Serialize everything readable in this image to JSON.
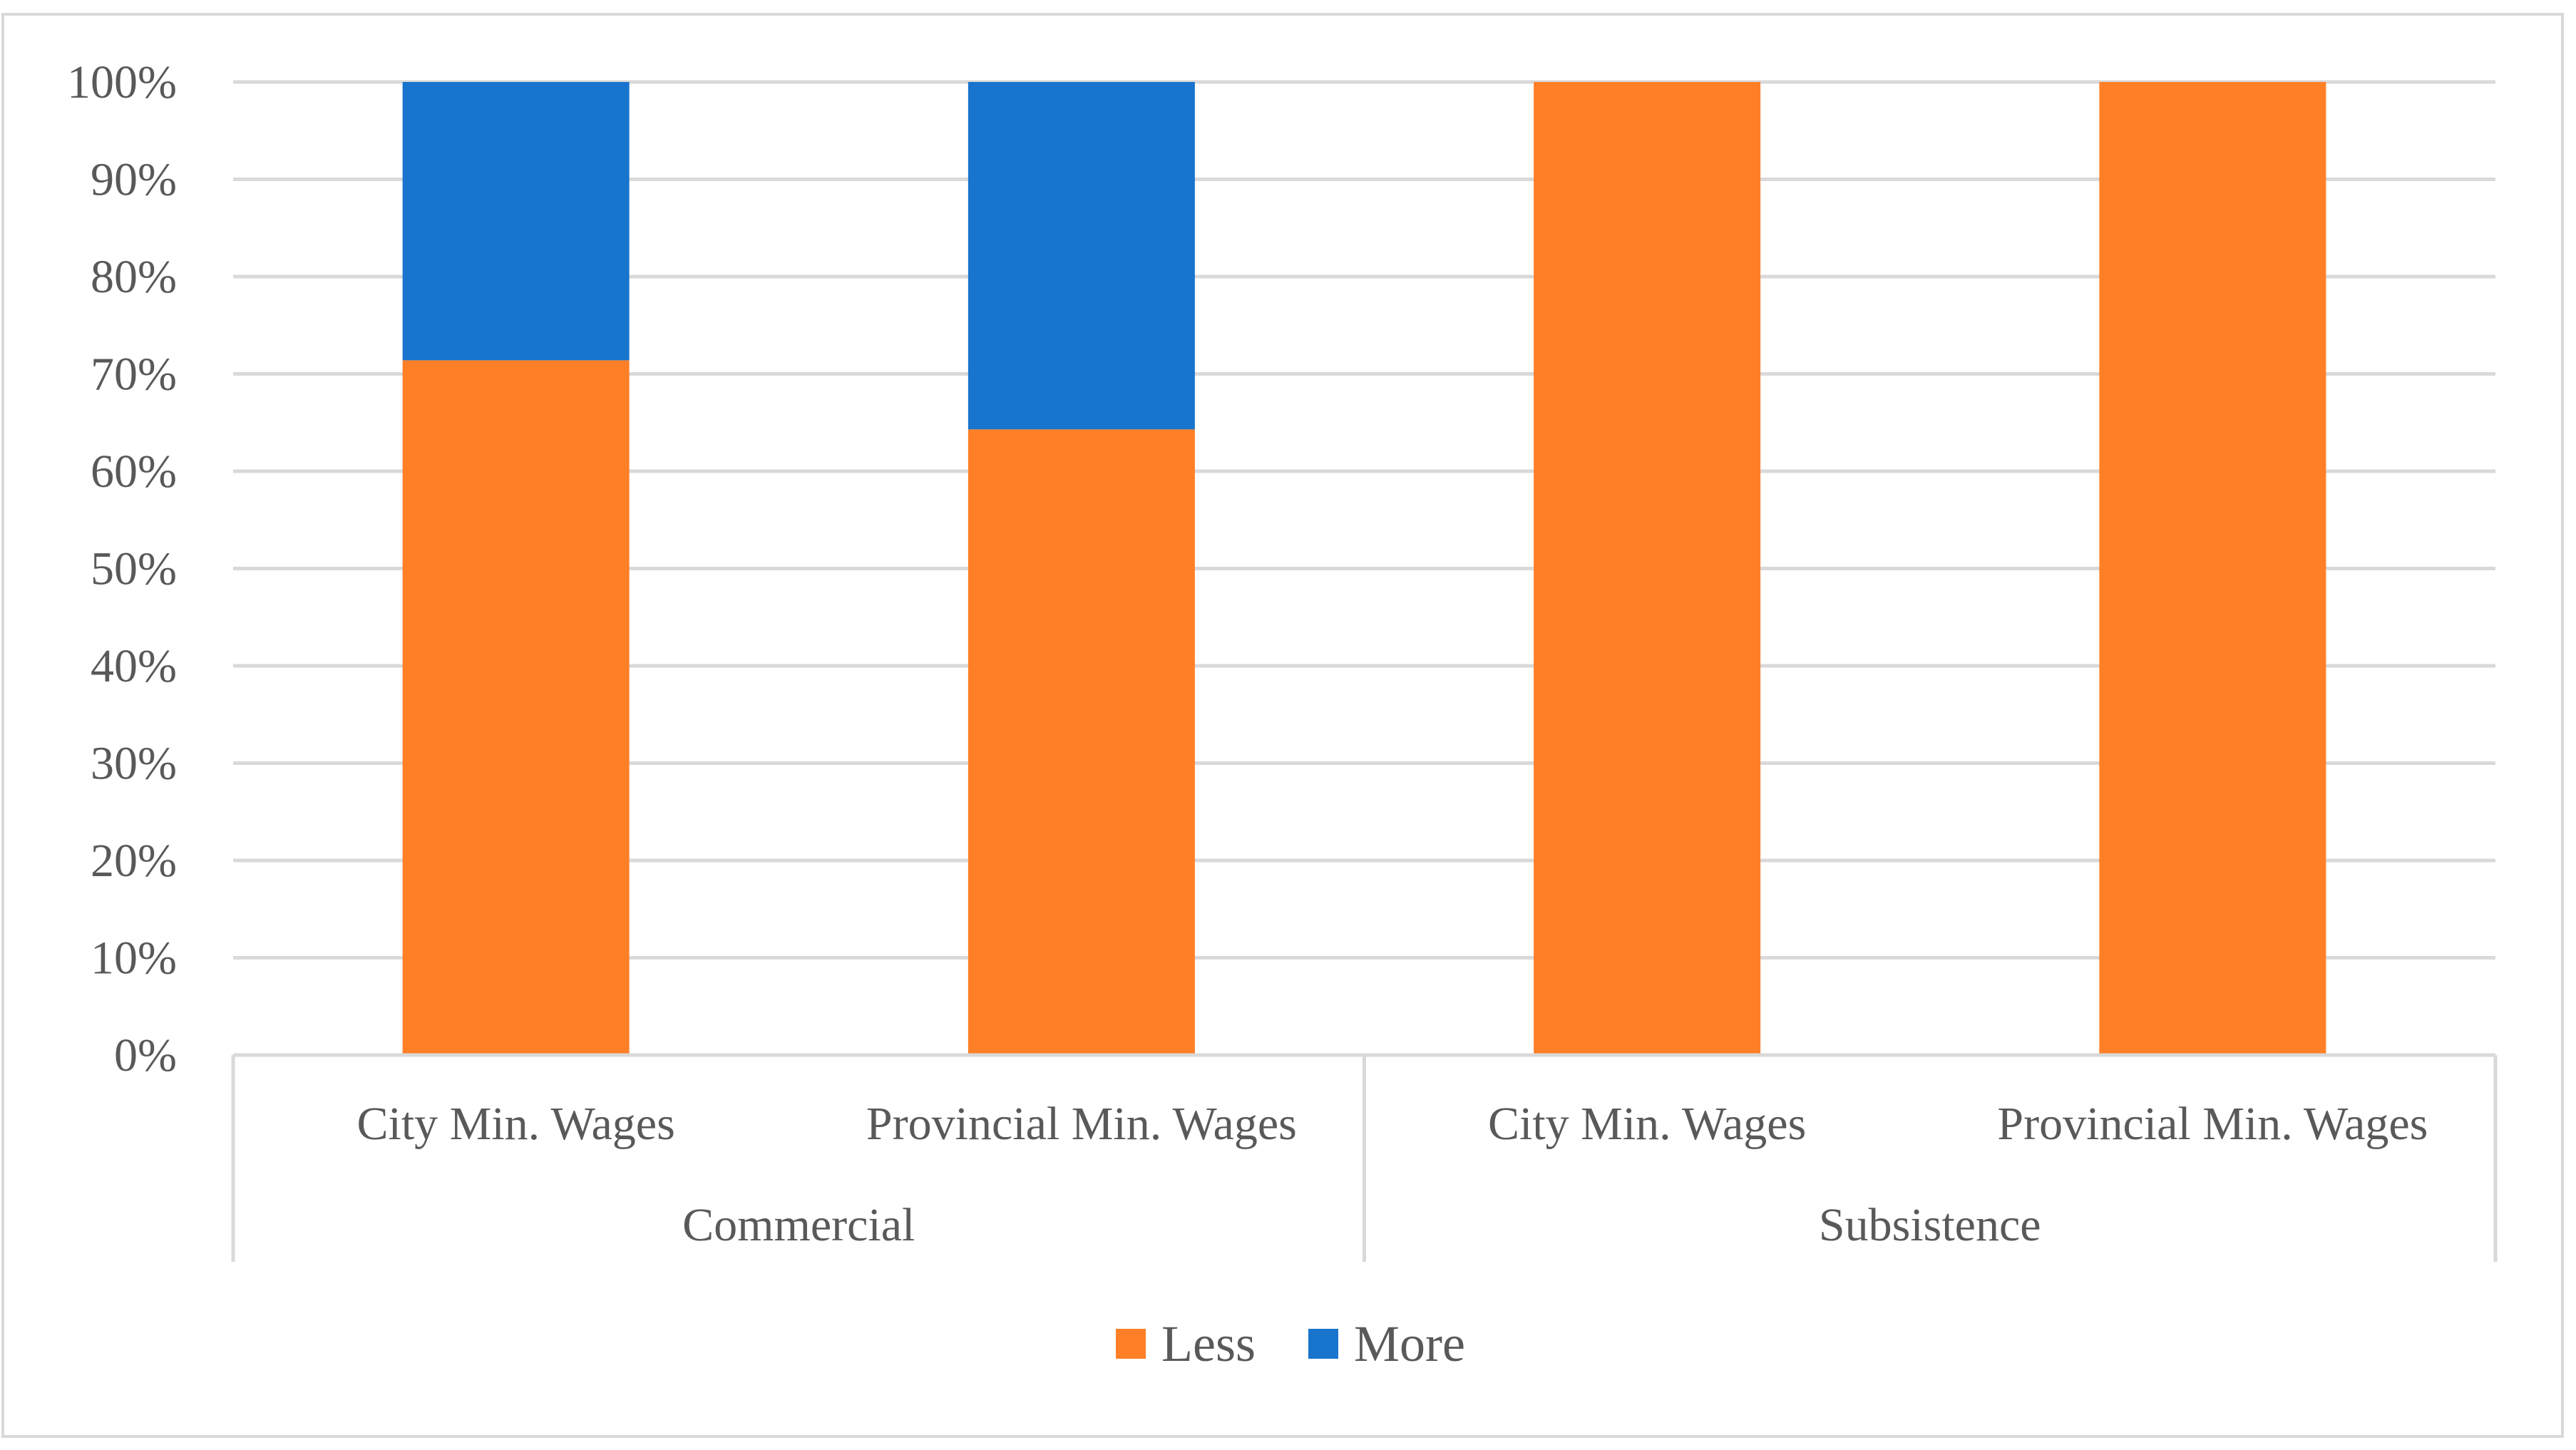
{
  "chart_data": {
    "type": "bar",
    "stacked": true,
    "percent": true,
    "groups": [
      {
        "label": "Commercial",
        "categories": [
          "City Min. Wages",
          "Provincial Min. Wages"
        ]
      },
      {
        "label": "Subsistence",
        "categories": [
          "City Min. Wages",
          "Provincial Min. Wages"
        ]
      }
    ],
    "categories": [
      "City Min. Wages",
      "Provincial Min. Wages",
      "City Min. Wages",
      "Provincial Min. Wages"
    ],
    "series": [
      {
        "name": "Less",
        "color": "#FF7F27",
        "values": [
          71.4,
          64.3,
          100,
          100
        ]
      },
      {
        "name": "More",
        "color": "#1874CD",
        "values": [
          28.6,
          35.7,
          0,
          0
        ]
      }
    ],
    "y_ticks": [
      "0%",
      "10%",
      "20%",
      "30%",
      "40%",
      "50%",
      "60%",
      "70%",
      "80%",
      "90%",
      "100%"
    ],
    "ylim": [
      0,
      100
    ],
    "grid": true,
    "legend_position": "bottom",
    "title": "",
    "xlabel": "",
    "ylabel": ""
  }
}
